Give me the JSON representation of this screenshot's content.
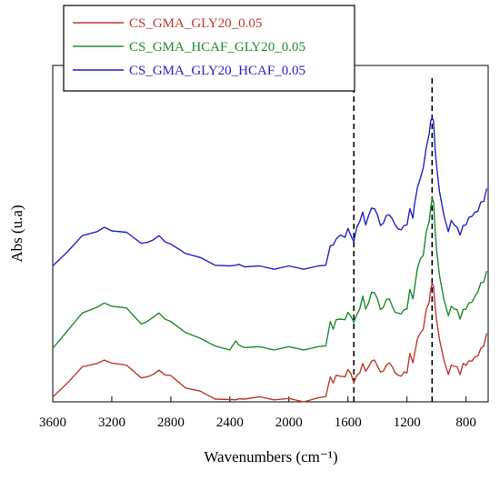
{
  "chart_data": {
    "type": "line",
    "title": "",
    "xlabel": "Wavenumbers  (cm⁻¹)",
    "ylabel": "Abs (u.a)",
    "x_reversed": true,
    "xlim": [
      3600,
      650
    ],
    "ylim": [
      0,
      1
    ],
    "x_ticks": [
      3600,
      3200,
      2800,
      2400,
      2000,
      1600,
      1200,
      800
    ],
    "y_ticks_shown": false,
    "grid": false,
    "legend_position": "top-left",
    "vertical_dashed_lines": [
      1560,
      1030
    ],
    "series": [
      {
        "name": "CS_GMA_GLY20_0.05",
        "color": "#c0392b",
        "x": [
          3600,
          3500,
          3400,
          3300,
          3250,
          3200,
          3100,
          3000,
          2960,
          2920,
          2880,
          2840,
          2800,
          2700,
          2600,
          2500,
          2400,
          2360,
          2340,
          2300,
          2200,
          2100,
          2000,
          1900,
          1800,
          1750,
          1720,
          1700,
          1680,
          1650,
          1620,
          1600,
          1580,
          1560,
          1540,
          1520,
          1500,
          1480,
          1460,
          1440,
          1420,
          1400,
          1380,
          1360,
          1340,
          1320,
          1300,
          1280,
          1260,
          1240,
          1220,
          1200,
          1180,
          1160,
          1150,
          1130,
          1110,
          1090,
          1070,
          1050,
          1040,
          1030,
          1020,
          1010,
          1000,
          980,
          950,
          920,
          900,
          880,
          860,
          840,
          820,
          800,
          780,
          760,
          740,
          720,
          700,
          680,
          660
        ],
        "y": [
          0.01,
          0.06,
          0.1,
          0.118,
          0.12,
          0.119,
          0.105,
          0.075,
          0.07,
          0.085,
          0.09,
          0.084,
          0.074,
          0.045,
          0.028,
          0.012,
          0.003,
          0.01,
          0.005,
          0.012,
          0.011,
          0.01,
          0.006,
          0.004,
          0.008,
          0.02,
          0.07,
          0.06,
          0.075,
          0.08,
          0.07,
          0.1,
          0.08,
          0.06,
          0.075,
          0.09,
          0.11,
          0.095,
          0.1,
          0.125,
          0.12,
          0.11,
          0.085,
          0.095,
          0.105,
          0.12,
          0.1,
          0.09,
          0.075,
          0.08,
          0.085,
          0.09,
          0.14,
          0.12,
          0.135,
          0.19,
          0.2,
          0.22,
          0.27,
          0.3,
          0.33,
          0.355,
          0.34,
          0.29,
          0.24,
          0.19,
          0.12,
          0.085,
          0.105,
          0.11,
          0.1,
          0.085,
          0.11,
          0.112,
          0.118,
          0.125,
          0.13,
          0.14,
          0.155,
          0.17,
          0.2
        ]
      },
      {
        "name": "CS_GMA_HCAF_GLY20_0.05",
        "color": "#1e8a2e",
        "x": [
          3600,
          3500,
          3400,
          3300,
          3250,
          3200,
          3100,
          3000,
          2960,
          2920,
          2880,
          2840,
          2800,
          2700,
          2600,
          2500,
          2400,
          2360,
          2340,
          2300,
          2200,
          2100,
          2000,
          1900,
          1800,
          1750,
          1720,
          1700,
          1680,
          1650,
          1620,
          1600,
          1580,
          1560,
          1540,
          1520,
          1500,
          1480,
          1460,
          1440,
          1420,
          1400,
          1380,
          1360,
          1340,
          1320,
          1300,
          1280,
          1260,
          1240,
          1220,
          1200,
          1180,
          1160,
          1150,
          1130,
          1110,
          1090,
          1070,
          1050,
          1040,
          1030,
          1020,
          1010,
          1000,
          980,
          950,
          920,
          900,
          880,
          860,
          840,
          820,
          800,
          780,
          760,
          740,
          720,
          700,
          680,
          660
        ],
        "y": [
          0.155,
          0.215,
          0.26,
          0.285,
          0.29,
          0.288,
          0.275,
          0.235,
          0.235,
          0.255,
          0.26,
          0.25,
          0.235,
          0.21,
          0.185,
          0.17,
          0.15,
          0.185,
          0.165,
          0.165,
          0.16,
          0.158,
          0.16,
          0.158,
          0.16,
          0.17,
          0.235,
          0.22,
          0.24,
          0.25,
          0.24,
          0.27,
          0.25,
          0.24,
          0.255,
          0.28,
          0.31,
          0.28,
          0.29,
          0.33,
          0.32,
          0.31,
          0.27,
          0.285,
          0.3,
          0.31,
          0.28,
          0.27,
          0.26,
          0.265,
          0.27,
          0.28,
          0.33,
          0.31,
          0.33,
          0.4,
          0.42,
          0.44,
          0.5,
          0.54,
          0.57,
          0.61,
          0.59,
          0.52,
          0.45,
          0.38,
          0.3,
          0.26,
          0.28,
          0.28,
          0.27,
          0.25,
          0.27,
          0.28,
          0.29,
          0.3,
          0.31,
          0.33,
          0.35,
          0.36,
          0.385
        ]
      },
      {
        "name": "CS_GMA_GLY20_HCAF_0.05",
        "color": "#2222cc",
        "x": [
          3600,
          3500,
          3400,
          3300,
          3250,
          3200,
          3100,
          3000,
          2960,
          2920,
          2880,
          2840,
          2800,
          2700,
          2600,
          2500,
          2400,
          2360,
          2340,
          2300,
          2200,
          2100,
          2000,
          1900,
          1800,
          1750,
          1720,
          1700,
          1680,
          1650,
          1620,
          1600,
          1580,
          1560,
          1540,
          1520,
          1500,
          1480,
          1460,
          1440,
          1420,
          1400,
          1380,
          1360,
          1340,
          1320,
          1300,
          1280,
          1260,
          1240,
          1220,
          1200,
          1180,
          1160,
          1150,
          1130,
          1110,
          1090,
          1070,
          1050,
          1040,
          1030,
          1020,
          1010,
          1000,
          980,
          950,
          920,
          900,
          880,
          860,
          840,
          820,
          800,
          780,
          760,
          740,
          720,
          700,
          680,
          660
        ],
        "y": [
          0.4,
          0.45,
          0.49,
          0.51,
          0.515,
          0.512,
          0.5,
          0.475,
          0.47,
          0.485,
          0.49,
          0.48,
          0.465,
          0.445,
          0.425,
          0.41,
          0.4,
          0.41,
          0.405,
          0.405,
          0.4,
          0.398,
          0.4,
          0.398,
          0.4,
          0.41,
          0.46,
          0.47,
          0.48,
          0.5,
          0.485,
          0.52,
          0.49,
          0.48,
          0.515,
          0.54,
          0.56,
          0.53,
          0.55,
          0.58,
          0.57,
          0.56,
          0.52,
          0.535,
          0.55,
          0.56,
          0.54,
          0.53,
          0.51,
          0.515,
          0.52,
          0.53,
          0.57,
          0.55,
          0.58,
          0.64,
          0.66,
          0.7,
          0.75,
          0.8,
          0.83,
          0.85,
          0.83,
          0.76,
          0.7,
          0.63,
          0.55,
          0.51,
          0.535,
          0.53,
          0.515,
          0.5,
          0.52,
          0.53,
          0.545,
          0.555,
          0.56,
          0.57,
          0.59,
          0.6,
          0.63
        ]
      }
    ]
  }
}
